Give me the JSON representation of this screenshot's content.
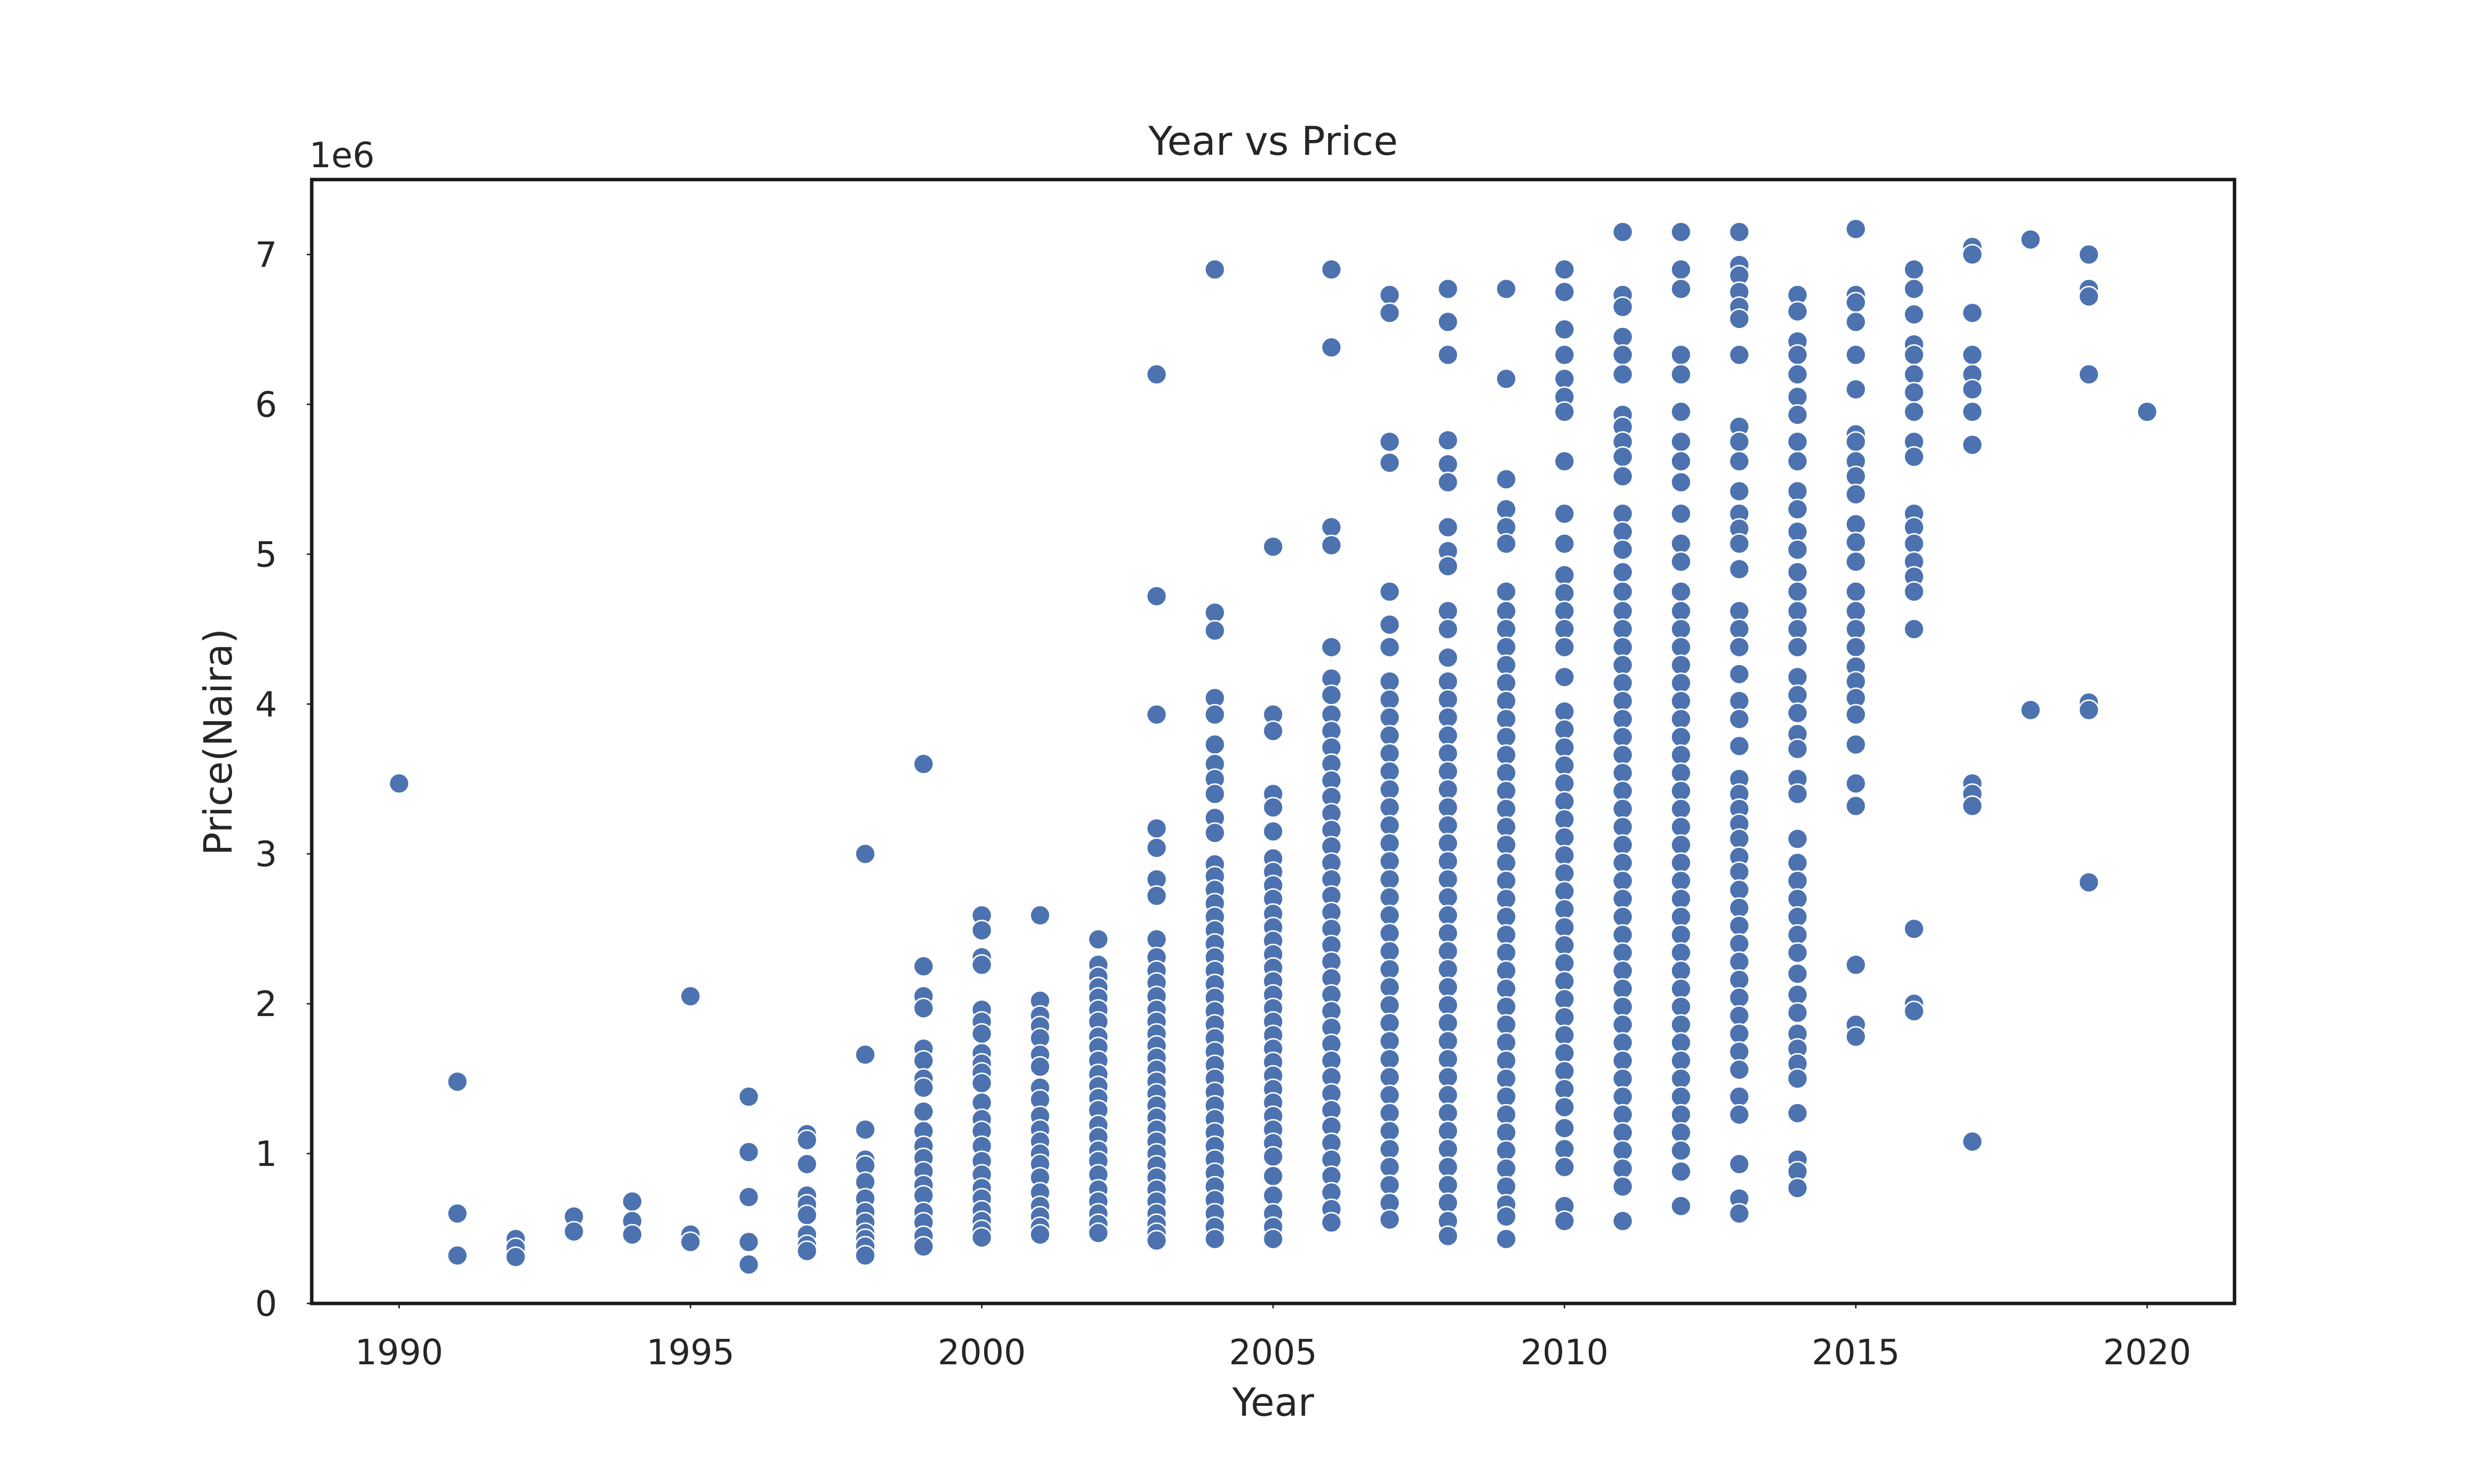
{
  "chart_data": {
    "type": "scatter",
    "title": "Year vs Price",
    "xlabel": "Year",
    "ylabel": "Price(Naira)",
    "y_offset_text": "1e6",
    "x_ticks": [
      1990,
      1995,
      2000,
      2005,
      2010,
      2015,
      2020
    ],
    "y_ticks": [
      0,
      1,
      2,
      3,
      4,
      5,
      6,
      7
    ],
    "xlim": [
      1988.5,
      2021.5
    ],
    "ylim": [
      0.0,
      7.5
    ],
    "y_scale_factor": 1000000,
    "grid": false,
    "legend": "none",
    "color": "#4c72b0",
    "points_by_year": [
      {
        "x": 1990,
        "y": [
          3.47
        ]
      },
      {
        "x": 1991,
        "y": [
          1.48,
          0.6,
          0.32
        ]
      },
      {
        "x": 1992,
        "y": [
          0.43,
          0.37,
          0.31
        ]
      },
      {
        "x": 1993,
        "y": [
          0.58,
          0.48
        ]
      },
      {
        "x": 1994,
        "y": [
          0.68,
          0.55,
          0.46
        ]
      },
      {
        "x": 1995,
        "y": [
          2.05,
          0.46,
          0.41
        ]
      },
      {
        "x": 1996,
        "y": [
          1.38,
          1.01,
          0.71,
          0.41,
          0.26
        ]
      },
      {
        "x": 1997,
        "y": [
          1.13,
          1.09,
          0.93,
          0.72,
          0.66,
          0.59,
          0.46,
          0.39,
          0.35
        ]
      },
      {
        "x": 1998,
        "y": [
          3.0,
          1.66,
          1.16,
          0.96,
          0.92,
          0.81,
          0.7,
          0.61,
          0.54,
          0.47,
          0.43,
          0.38,
          0.32
        ]
      },
      {
        "x": 1999,
        "y": [
          3.6,
          2.25,
          2.05,
          1.97,
          1.7,
          1.62,
          1.5,
          1.44,
          1.28,
          1.15,
          1.05,
          0.97,
          0.88,
          0.79,
          0.72,
          0.61,
          0.54,
          0.45,
          0.38
        ]
      },
      {
        "x": 2000,
        "y": [
          2.59,
          2.49,
          2.31,
          2.26,
          1.96,
          1.88,
          1.8,
          1.67,
          1.6,
          1.54,
          1.47,
          1.34,
          1.23,
          1.15,
          1.05,
          0.95,
          0.86,
          0.77,
          0.7,
          0.62,
          0.55,
          0.49,
          0.44
        ]
      },
      {
        "x": 2001,
        "y": [
          2.59,
          2.02,
          1.92,
          1.85,
          1.77,
          1.66,
          1.58,
          1.44,
          1.36,
          1.25,
          1.16,
          1.08,
          1.0,
          0.93,
          0.84,
          0.74,
          0.65,
          0.58,
          0.51,
          0.46
        ]
      },
      {
        "x": 2002,
        "y": [
          2.43,
          2.26,
          2.18,
          2.11,
          2.04,
          1.96,
          1.88,
          1.78,
          1.71,
          1.62,
          1.53,
          1.45,
          1.37,
          1.29,
          1.19,
          1.11,
          1.02,
          0.95,
          0.86,
          0.76,
          0.68,
          0.6,
          0.53,
          0.47
        ]
      },
      {
        "x": 2003,
        "y": [
          6.2,
          4.72,
          3.93,
          3.17,
          3.04,
          2.83,
          2.72,
          2.43,
          2.31,
          2.22,
          2.14,
          2.05,
          1.96,
          1.88,
          1.8,
          1.72,
          1.64,
          1.56,
          1.48,
          1.4,
          1.32,
          1.24,
          1.16,
          1.08,
          1.0,
          0.92,
          0.84,
          0.76,
          0.68,
          0.6,
          0.53,
          0.47,
          0.42
        ]
      },
      {
        "x": 2004,
        "y": [
          6.9,
          4.61,
          4.49,
          4.04,
          3.93,
          3.73,
          3.6,
          3.5,
          3.4,
          3.24,
          3.14,
          2.93,
          2.85,
          2.76,
          2.67,
          2.58,
          2.49,
          2.4,
          2.31,
          2.22,
          2.13,
          2.04,
          1.95,
          1.86,
          1.77,
          1.68,
          1.59,
          1.5,
          1.41,
          1.32,
          1.23,
          1.14,
          1.05,
          0.96,
          0.87,
          0.78,
          0.69,
          0.6,
          0.51,
          0.43
        ]
      },
      {
        "x": 2005,
        "y": [
          5.05,
          3.93,
          3.82,
          3.4,
          3.31,
          3.15,
          2.97,
          2.88,
          2.79,
          2.7,
          2.6,
          2.51,
          2.42,
          2.33,
          2.24,
          2.15,
          2.06,
          1.97,
          1.88,
          1.79,
          1.7,
          1.61,
          1.52,
          1.43,
          1.34,
          1.25,
          1.16,
          1.07,
          0.98,
          0.85,
          0.72,
          0.6,
          0.51,
          0.43
        ]
      },
      {
        "x": 2006,
        "y": [
          6.9,
          6.38,
          5.18,
          5.06,
          4.38,
          4.17,
          4.06,
          3.93,
          3.82,
          3.71,
          3.6,
          3.49,
          3.38,
          3.27,
          3.16,
          3.05,
          2.94,
          2.83,
          2.72,
          2.61,
          2.5,
          2.39,
          2.28,
          2.17,
          2.06,
          1.95,
          1.84,
          1.73,
          1.62,
          1.51,
          1.4,
          1.29,
          1.18,
          1.07,
          0.96,
          0.85,
          0.74,
          0.63,
          0.54
        ]
      },
      {
        "x": 2007,
        "y": [
          6.73,
          6.61,
          5.75,
          5.61,
          4.75,
          4.53,
          4.38,
          4.15,
          4.03,
          3.91,
          3.79,
          3.67,
          3.55,
          3.43,
          3.31,
          3.19,
          3.07,
          2.95,
          2.83,
          2.71,
          2.59,
          2.47,
          2.35,
          2.23,
          2.11,
          1.99,
          1.87,
          1.75,
          1.63,
          1.51,
          1.39,
          1.27,
          1.15,
          1.03,
          0.91,
          0.79,
          0.67,
          0.56
        ]
      },
      {
        "x": 2008,
        "y": [
          6.77,
          6.55,
          6.33,
          5.76,
          5.6,
          5.48,
          5.18,
          5.02,
          4.92,
          4.62,
          4.5,
          4.31,
          4.15,
          4.03,
          3.91,
          3.79,
          3.67,
          3.55,
          3.43,
          3.31,
          3.19,
          3.07,
          2.95,
          2.83,
          2.71,
          2.59,
          2.47,
          2.35,
          2.23,
          2.11,
          1.99,
          1.87,
          1.75,
          1.63,
          1.51,
          1.39,
          1.27,
          1.15,
          1.03,
          0.91,
          0.79,
          0.67,
          0.55,
          0.45
        ]
      },
      {
        "x": 2009,
        "y": [
          6.77,
          6.17,
          5.5,
          5.3,
          5.18,
          5.07,
          4.75,
          4.62,
          4.5,
          4.38,
          4.26,
          4.14,
          4.02,
          3.9,
          3.78,
          3.66,
          3.54,
          3.42,
          3.3,
          3.18,
          3.06,
          2.94,
          2.82,
          2.7,
          2.58,
          2.46,
          2.34,
          2.22,
          2.1,
          1.98,
          1.86,
          1.74,
          1.62,
          1.5,
          1.38,
          1.26,
          1.14,
          1.02,
          0.9,
          0.78,
          0.66,
          0.58,
          0.43
        ]
      },
      {
        "x": 2010,
        "y": [
          6.9,
          6.75,
          6.5,
          6.33,
          6.17,
          6.05,
          5.95,
          5.62,
          5.27,
          5.07,
          4.86,
          4.74,
          4.62,
          4.5,
          4.38,
          4.18,
          3.95,
          3.83,
          3.71,
          3.59,
          3.47,
          3.35,
          3.23,
          3.11,
          2.99,
          2.87,
          2.75,
          2.63,
          2.51,
          2.39,
          2.27,
          2.15,
          2.03,
          1.91,
          1.79,
          1.67,
          1.55,
          1.43,
          1.31,
          1.17,
          1.03,
          0.91,
          0.65,
          0.55
        ]
      },
      {
        "x": 2011,
        "y": [
          7.15,
          6.73,
          6.65,
          6.45,
          6.33,
          6.2,
          5.93,
          5.85,
          5.75,
          5.65,
          5.52,
          5.27,
          5.15,
          5.03,
          4.88,
          4.75,
          4.62,
          4.5,
          4.38,
          4.26,
          4.14,
          4.02,
          3.9,
          3.78,
          3.66,
          3.54,
          3.42,
          3.3,
          3.18,
          3.06,
          2.94,
          2.82,
          2.7,
          2.58,
          2.46,
          2.34,
          2.22,
          2.1,
          1.98,
          1.86,
          1.74,
          1.62,
          1.5,
          1.38,
          1.26,
          1.14,
          1.02,
          0.9,
          0.78,
          0.55
        ]
      },
      {
        "x": 2012,
        "y": [
          7.15,
          6.9,
          6.77,
          6.33,
          6.2,
          5.95,
          5.75,
          5.62,
          5.48,
          5.27,
          5.07,
          4.95,
          4.75,
          4.62,
          4.5,
          4.38,
          4.26,
          4.14,
          4.02,
          3.9,
          3.78,
          3.66,
          3.54,
          3.42,
          3.3,
          3.18,
          3.06,
          2.94,
          2.82,
          2.7,
          2.58,
          2.46,
          2.34,
          2.22,
          2.1,
          1.98,
          1.86,
          1.74,
          1.62,
          1.5,
          1.38,
          1.26,
          1.14,
          1.02,
          0.88,
          0.65
        ]
      },
      {
        "x": 2013,
        "y": [
          7.15,
          6.93,
          6.86,
          6.75,
          6.65,
          6.57,
          6.33,
          5.85,
          5.75,
          5.62,
          5.42,
          5.27,
          5.17,
          5.07,
          4.9,
          4.62,
          4.5,
          4.38,
          4.2,
          4.02,
          3.9,
          3.72,
          3.5,
          3.4,
          3.3,
          3.2,
          3.1,
          2.98,
          2.88,
          2.76,
          2.64,
          2.52,
          2.4,
          2.28,
          2.16,
          2.04,
          1.92,
          1.8,
          1.68,
          1.56,
          1.38,
          1.26,
          0.93,
          0.7,
          0.6
        ]
      },
      {
        "x": 2014,
        "y": [
          6.73,
          6.62,
          6.42,
          6.33,
          6.2,
          6.05,
          5.93,
          5.75,
          5.62,
          5.42,
          5.3,
          5.15,
          5.03,
          4.88,
          4.75,
          4.62,
          4.5,
          4.38,
          4.18,
          4.06,
          3.94,
          3.8,
          3.7,
          3.5,
          3.4,
          3.1,
          2.94,
          2.82,
          2.7,
          2.58,
          2.46,
          2.34,
          2.2,
          2.06,
          1.94,
          1.8,
          1.7,
          1.6,
          1.5,
          1.27,
          0.96,
          0.88,
          0.77
        ]
      },
      {
        "x": 2015,
        "y": [
          7.17,
          6.73,
          6.68,
          6.55,
          6.33,
          6.1,
          5.8,
          5.75,
          5.62,
          5.52,
          5.4,
          5.2,
          5.08,
          4.95,
          4.75,
          4.62,
          4.5,
          4.38,
          4.25,
          4.15,
          4.04,
          3.93,
          3.73,
          3.47,
          3.32,
          2.26,
          1.86,
          1.78
        ]
      },
      {
        "x": 2016,
        "y": [
          6.9,
          6.77,
          6.6,
          6.4,
          6.33,
          6.2,
          6.08,
          5.95,
          5.75,
          5.65,
          5.27,
          5.18,
          5.07,
          4.95,
          4.85,
          4.75,
          4.5,
          2.5,
          2.0,
          1.95
        ]
      },
      {
        "x": 2017,
        "y": [
          7.05,
          7.0,
          6.61,
          6.33,
          6.2,
          6.1,
          5.95,
          5.73,
          3.47,
          3.4,
          3.32,
          1.08
        ]
      },
      {
        "x": 2018,
        "y": [
          7.1,
          3.96
        ]
      },
      {
        "x": 2019,
        "y": [
          7.0,
          6.77,
          6.72,
          6.2,
          4.01,
          3.96,
          2.81
        ]
      },
      {
        "x": 2020,
        "y": [
          5.95
        ]
      }
    ]
  }
}
